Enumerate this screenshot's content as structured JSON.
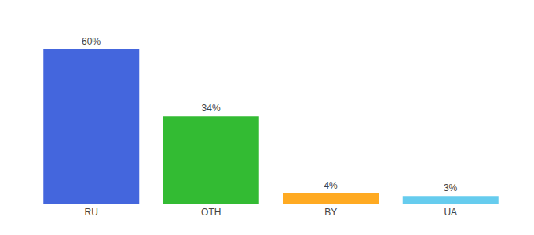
{
  "chart_data": {
    "type": "bar",
    "categories": [
      "RU",
      "OTH",
      "BY",
      "UA"
    ],
    "values": [
      60,
      34,
      4,
      3
    ],
    "colors": [
      "#4466dd",
      "#33bb33",
      "#ffaa22",
      "#66ccee"
    ],
    "value_labels": [
      "60%",
      "34%",
      "4%",
      "3%"
    ],
    "data_labels": true,
    "ylim": [
      0,
      70
    ],
    "grid": false,
    "tick_labels": "x"
  }
}
